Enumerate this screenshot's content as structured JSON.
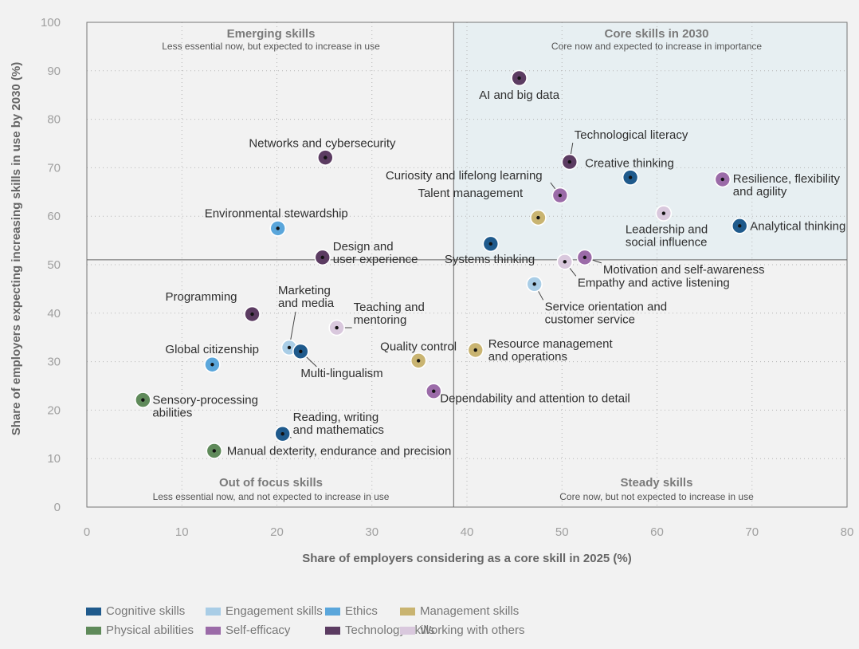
{
  "chart_data": {
    "type": "scatter",
    "xlabel": "Share of employers considering as a core skill in 2025 (%)",
    "ylabel": "Share of employers expecting increasing skills in use by 2030 (%)",
    "xlim": [
      0,
      80
    ],
    "ylim": [
      0,
      100
    ],
    "xticks": [
      "0",
      "10",
      "20",
      "30",
      "40",
      "50",
      "60",
      "70",
      "80"
    ],
    "yticks": [
      "0",
      "10",
      "20",
      "30",
      "40",
      "50",
      "60",
      "70",
      "80",
      "90",
      "100"
    ],
    "grid": true,
    "divider": {
      "x": 38.6,
      "y": 51
    },
    "quadrants": {
      "top_left": {
        "title": "Emerging skills",
        "subtitle": "Less essential now, but expected to increase in use"
      },
      "top_right": {
        "title": "Core skills in 2030",
        "subtitle": "Core now and expected to increase in importance"
      },
      "bottom_left": {
        "title": "Out of focus skills",
        "subtitle": "Less essential now, and not expected to increase in use"
      },
      "bottom_right": {
        "title": "Steady skills",
        "subtitle": "Core now, but not expected to increase in use"
      }
    },
    "categories": [
      {
        "name": "Cognitive skills",
        "color": "#1f5a8c"
      },
      {
        "name": "Engagement skills",
        "color": "#a9cde6"
      },
      {
        "name": "Ethics",
        "color": "#5aa6db"
      },
      {
        "name": "Management skills",
        "color": "#c9b471"
      },
      {
        "name": "Physical abilities",
        "color": "#5f8a5a"
      },
      {
        "name": "Self-efficacy",
        "color": "#9b6ba8"
      },
      {
        "name": "Technology skills",
        "color": "#5c3c62"
      },
      {
        "name": "Working with others",
        "color": "#d9c8dd"
      }
    ],
    "points": [
      {
        "label": [
          "AI and big data"
        ],
        "cat": "Technology skills",
        "x": 45.5,
        "y": 88.5
      },
      {
        "label": [
          "Technological literacy"
        ],
        "cat": "Technology skills",
        "x": 50.8,
        "y": 71.2
      },
      {
        "label": [
          "Creative thinking"
        ],
        "cat": "Cognitive skills",
        "x": 57.2,
        "y": 68.0
      },
      {
        "label": [
          "Resilience, flexibility",
          "and agility"
        ],
        "cat": "Self-efficacy",
        "x": 66.9,
        "y": 67.6
      },
      {
        "label": [
          "Curiosity and lifelong learning"
        ],
        "cat": "Self-efficacy",
        "x": 49.8,
        "y": 64.3
      },
      {
        "label": [
          "Talent management"
        ],
        "cat": "Management skills",
        "x": 47.5,
        "y": 59.7
      },
      {
        "label": [
          "Leadership and",
          "social influence"
        ],
        "cat": "Working with others",
        "x": 60.7,
        "y": 60.6
      },
      {
        "label": [
          "Analytical thinking"
        ],
        "cat": "Cognitive skills",
        "x": 68.7,
        "y": 58.0
      },
      {
        "label": [
          "Systems thinking"
        ],
        "cat": "Cognitive skills",
        "x": 42.5,
        "y": 54.3
      },
      {
        "label": [
          "Motivation and self-awareness"
        ],
        "cat": "Self-efficacy",
        "x": 52.4,
        "y": 51.5
      },
      {
        "label": [
          "Empathy and active listening"
        ],
        "cat": "Working with others",
        "x": 50.3,
        "y": 50.6
      },
      {
        "label": [
          "Service orientation and",
          "customer service"
        ],
        "cat": "Engagement skills",
        "x": 47.1,
        "y": 46.0
      },
      {
        "label": [
          "Networks and cybersecurity"
        ],
        "cat": "Technology skills",
        "x": 25.1,
        "y": 72.1
      },
      {
        "label": [
          "Environmental stewardship"
        ],
        "cat": "Ethics",
        "x": 20.1,
        "y": 57.5
      },
      {
        "label": [
          "Design and",
          "user experience"
        ],
        "cat": "Technology skills",
        "x": 24.8,
        "y": 51.5
      },
      {
        "label": [
          "Programming"
        ],
        "cat": "Technology skills",
        "x": 17.4,
        "y": 39.8
      },
      {
        "label": [
          "Marketing",
          "and media"
        ],
        "cat": "Engagement skills",
        "x": 21.3,
        "y": 32.9
      },
      {
        "label": [
          "Teaching and",
          "mentoring"
        ],
        "cat": "Working with others",
        "x": 26.3,
        "y": 37.0
      },
      {
        "label": [
          "Multi-lingualism"
        ],
        "cat": "Cognitive skills",
        "x": 22.5,
        "y": 32.1
      },
      {
        "label": [
          "Global citizenship"
        ],
        "cat": "Ethics",
        "x": 13.2,
        "y": 29.4
      },
      {
        "label": [
          "Quality control"
        ],
        "cat": "Management skills",
        "x": 34.9,
        "y": 30.2
      },
      {
        "label": [
          "Resource management",
          "and operations"
        ],
        "cat": "Management skills",
        "x": 40.9,
        "y": 32.4
      },
      {
        "label": [
          "Sensory-processing",
          "abilities"
        ],
        "cat": "Physical abilities",
        "x": 5.9,
        "y": 22.1
      },
      {
        "label": [
          "Dependability and attention to detail"
        ],
        "cat": "Self-efficacy",
        "x": 36.5,
        "y": 23.9
      },
      {
        "label": [
          "Reading, writing",
          "and mathematics"
        ],
        "cat": "Cognitive skills",
        "x": 20.6,
        "y": 15.1
      },
      {
        "label": [
          "Manual dexterity, endurance and precision"
        ],
        "cat": "Physical abilities",
        "x": 13.4,
        "y": 11.6
      }
    ]
  }
}
